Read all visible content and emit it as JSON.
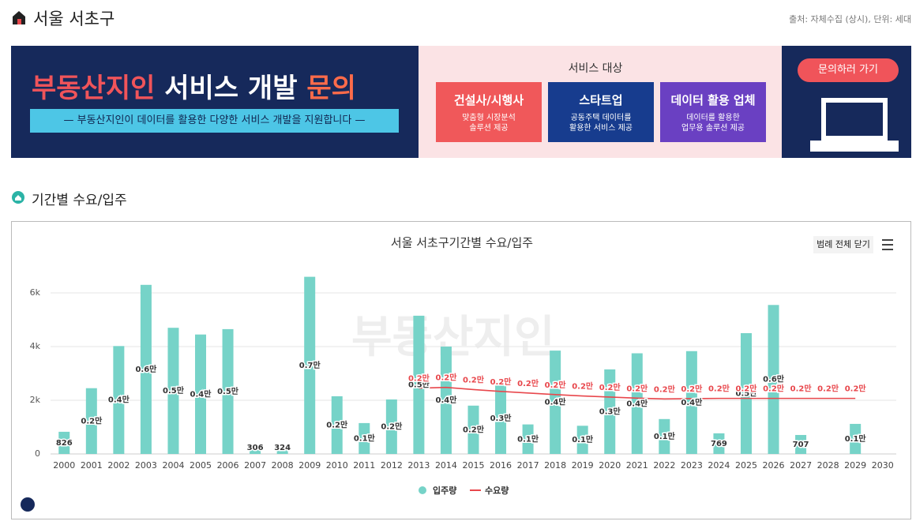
{
  "header": {
    "title": "서울 서초구",
    "source": "출처: 자체수집 (상시), 단위: 세대"
  },
  "banner": {
    "title_parts": [
      "부동산지인",
      "서비스 개발",
      "문의"
    ],
    "subtitle": "—  부동산지인이 데이터를 활용한 다양한 서비스 개발을 지원합니다  —",
    "target_heading": "서비스 대상",
    "targets": [
      {
        "title": "건설사/시행사",
        "lines": [
          "맞춤형 시장분석",
          "솔루션 제공"
        ]
      },
      {
        "title": "스타트업",
        "lines": [
          "공동주택 데이터를",
          "활용한 서비스 제공"
        ]
      },
      {
        "title": "데이터 활용 업체",
        "lines": [
          "데이터를 활용한",
          "업무용 솔루션 제공"
        ]
      }
    ],
    "button": "문의하러 가기"
  },
  "section_title": "기간별 수요/입주",
  "watermark": "부동산지인",
  "chart_data": {
    "type": "bar",
    "title": "서울 서초구기간별 수요/입주",
    "legend_button": "범례 전체 닫기",
    "categories": [
      "2000",
      "2001",
      "2002",
      "2003",
      "2004",
      "2005",
      "2006",
      "2007",
      "2008",
      "2009",
      "2010",
      "2011",
      "2012",
      "2013",
      "2014",
      "2015",
      "2016",
      "2017",
      "2018",
      "2019",
      "2020",
      "2021",
      "2022",
      "2023",
      "2024",
      "2025",
      "2026",
      "2027",
      "2028",
      "2029",
      "2030"
    ],
    "series": [
      {
        "name": "입주량",
        "color": "#76d3c8",
        "values": [
          826,
          2450,
          4020,
          6300,
          4700,
          4450,
          4650,
          306,
          324,
          6600,
          2150,
          1150,
          2030,
          5150,
          4000,
          1800,
          2650,
          1100,
          3850,
          1050,
          3150,
          3750,
          1300,
          3830,
          769,
          4500,
          5550,
          707,
          null,
          1120,
          null
        ],
        "value_labels": [
          "826",
          "0.2만",
          "0.4만",
          "0.6만",
          "0.5만",
          "0.4만",
          "0.5만",
          "306",
          "324",
          "0.7만",
          "0.2만",
          "0.1만",
          "0.2만",
          "0.5만",
          "0.4만",
          "0.2만",
          "0.3만",
          "0.1만",
          "0.4만",
          "0.1만",
          "0.3만",
          "0.4만",
          "0.1만",
          "0.4만",
          "769",
          "0.5만",
          "0.6만",
          "707",
          null,
          "0.1만",
          null
        ]
      },
      {
        "name": "수요량",
        "color": "#e8474c",
        "type": "line",
        "values": [
          null,
          null,
          null,
          null,
          null,
          null,
          null,
          null,
          null,
          null,
          null,
          null,
          null,
          2450,
          2480,
          2400,
          2330,
          2270,
          2210,
          2160,
          2120,
          2080,
          2050,
          2060,
          2070,
          2070,
          2070,
          2070,
          2070,
          2070,
          null
        ],
        "value_labels": [
          null,
          null,
          null,
          null,
          null,
          null,
          null,
          null,
          null,
          null,
          null,
          null,
          null,
          "0.2만",
          "0.2만",
          "0.2만",
          "0.2만",
          "0.2만",
          "0.2만",
          "0.2만",
          "0.2만",
          "0.2만",
          "0.2만",
          "0.2만",
          "0.2만",
          "0.2만",
          "0.2만",
          "0.2만",
          "0.2만",
          "0.2만",
          null
        ]
      }
    ],
    "ylim": [
      0,
      7000
    ],
    "yticks": [
      0,
      {
        "value": 2000,
        "label": "2k"
      },
      {
        "value": 4000,
        "label": "4k"
      },
      {
        "value": 6000,
        "label": "6k"
      }
    ],
    "grid": true,
    "legend": "bottom"
  }
}
